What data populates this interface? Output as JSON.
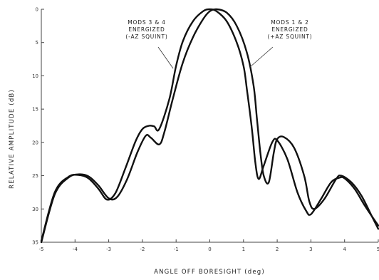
{
  "chart_data": {
    "type": "line",
    "title": "",
    "xlabel": "ANGLE OFF BORESIGHT (deg)",
    "ylabel": "RELATIVE AMPLITUDE (dB)",
    "xlim": [
      -5,
      5
    ],
    "ylim": [
      0,
      35
    ],
    "y_inverted": true,
    "grid": false,
    "legend": "none",
    "x_ticks": [
      "-5",
      "-4",
      "-3",
      "-2",
      "-1",
      "0",
      "1",
      "2",
      "3",
      "4",
      "5"
    ],
    "y_ticks": [
      "0",
      "5",
      "10",
      "15",
      "20",
      "25",
      "30",
      "35"
    ],
    "annotations": [
      {
        "id": "left",
        "lines": [
          "MODS 3 & 4",
          "ENERGIZED",
          "(-AZ SQUINT)"
        ]
      },
      {
        "id": "right",
        "lines": [
          "MODS 1 & 2",
          "ENERGIZED",
          "(+AZ SQUINT)"
        ]
      }
    ],
    "series": [
      {
        "x": [
          -5,
          -4.6,
          -4.2,
          -3.9,
          -3.6,
          -3.3,
          -3.05,
          -2.8,
          -2.5,
          -2.2,
          -2.0,
          -1.8,
          -1.65,
          -1.5,
          -1.2,
          -1.0,
          -0.8,
          -0.5,
          -0.2,
          0.0,
          0.2,
          0.5,
          0.8,
          1.0,
          1.1,
          1.25,
          1.35,
          1.45,
          1.6,
          1.85,
          2.0,
          2.3,
          2.6,
          2.85,
          3.0,
          3.3,
          3.6,
          3.85,
          4.0,
          4.3,
          4.6,
          5.0
        ],
        "y": [
          34.8,
          27.5,
          25.2,
          24.9,
          25.4,
          27.0,
          28.6,
          27.6,
          23.8,
          19.8,
          18.0,
          17.5,
          17.6,
          18.0,
          13.5,
          8.5,
          4.8,
          1.8,
          0.3,
          0.0,
          0.3,
          1.8,
          5.0,
          8.5,
          12.0,
          18.0,
          23.0,
          25.5,
          23.5,
          20.0,
          19.7,
          22.5,
          27.5,
          30.2,
          30.8,
          28.5,
          26.0,
          25.3,
          25.4,
          27.0,
          29.5,
          32.5
        ]
      },
      {
        "x": [
          -5,
          -4.6,
          -4.2,
          -3.9,
          -3.6,
          -3.3,
          -3.0,
          -2.75,
          -2.45,
          -2.15,
          -1.9,
          -1.75,
          -1.5,
          -1.35,
          -1.1,
          -0.8,
          -0.5,
          -0.2,
          0.0,
          0.2,
          0.5,
          0.8,
          1.1,
          1.3,
          1.4,
          1.5,
          1.6,
          1.75,
          1.9,
          2.0,
          2.2,
          2.5,
          2.8,
          2.95,
          3.1,
          3.4,
          3.75,
          3.9,
          4.2,
          4.5,
          4.8,
          5.0
        ],
        "y": [
          35.0,
          27.8,
          25.3,
          24.8,
          25.1,
          26.5,
          28.4,
          28.2,
          25.5,
          21.5,
          19.0,
          19.3,
          20.3,
          18.5,
          13.5,
          8.0,
          4.2,
          1.5,
          0.3,
          0.0,
          0.5,
          2.5,
          6.5,
          11.5,
          16.5,
          21.5,
          25.0,
          26.0,
          21.5,
          19.5,
          19.2,
          20.8,
          25.0,
          28.8,
          30.0,
          28.5,
          25.5,
          25.0,
          26.0,
          28.0,
          31.0,
          33.0
        ]
      }
    ]
  }
}
